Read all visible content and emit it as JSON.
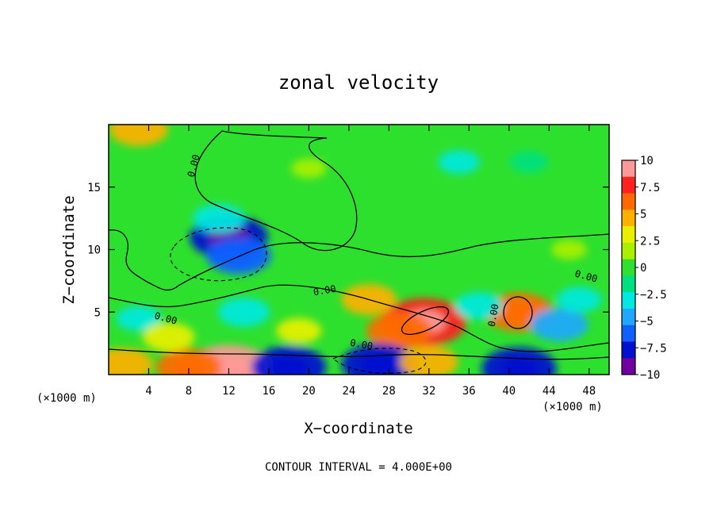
{
  "chart_data": {
    "type": "heatmap",
    "title": "zonal velocity",
    "xlabel": "X−coordinate",
    "ylabel": "Z−coordinate",
    "x_unit_left": "(×1000 m)",
    "x_unit_right": "(×1000 m)",
    "footer": "CONTOUR INTERVAL = 4.000E+00",
    "xlim": [
      0,
      50
    ],
    "ylim": [
      0,
      20
    ],
    "x_ticks": [
      4,
      8,
      12,
      16,
      20,
      24,
      28,
      32,
      36,
      40,
      44,
      48
    ],
    "x_tick_labels": [
      "4",
      "8",
      "12",
      "16",
      "20",
      "24",
      "28",
      "32",
      "36",
      "40",
      "44",
      "48"
    ],
    "y_ticks": [
      5,
      10,
      15
    ],
    "y_tick_labels": [
      "5",
      "10",
      "15"
    ],
    "colorbar": {
      "min": -10,
      "max": 10,
      "labels": [
        "10",
        "7.5",
        "5",
        "2.5",
        "0",
        "−2.5",
        "−5",
        "−7.5",
        "−10"
      ],
      "label_values": [
        10,
        7.5,
        5,
        2.5,
        0,
        -2.5,
        -5,
        -7.5,
        -10
      ],
      "colors": [
        "#ff9999",
        "#ff2020",
        "#ff6a00",
        "#ffb000",
        "#e8f000",
        "#a8f000",
        "#30e030",
        "#00e080",
        "#00e8e0",
        "#20a8ff",
        "#1060ff",
        "#0010d0",
        "#7000a0"
      ]
    },
    "contour_labels": [
      "0.00",
      "0.00",
      "0.00",
      "0.00",
      "0.00",
      "0.00"
    ],
    "features": [
      {
        "x": 12.0,
        "z": 11.0,
        "value": -8.0
      },
      {
        "x": 13.0,
        "z": 9.5,
        "value": -6.0
      },
      {
        "x": 11.0,
        "z": 12.5,
        "value": -4.0
      },
      {
        "x": 31.5,
        "z": 4.2,
        "value": 9.0
      },
      {
        "x": 29.0,
        "z": 3.5,
        "value": 6.0
      },
      {
        "x": 26.0,
        "z": 6.0,
        "value": 4.5
      },
      {
        "x": 41.0,
        "z": 5.0,
        "value": 6.5
      },
      {
        "x": 12.0,
        "z": 0.3,
        "value": 10.0
      },
      {
        "x": 8.0,
        "z": 0.6,
        "value": 6.0
      },
      {
        "x": 1.5,
        "z": 0.8,
        "value": 5.0
      },
      {
        "x": 27.0,
        "z": 0.8,
        "value": -7.5
      },
      {
        "x": 18.0,
        "z": 0.6,
        "value": -7.5
      },
      {
        "x": 41.0,
        "z": 0.5,
        "value": -7.5
      },
      {
        "x": 45.0,
        "z": 4.0,
        "value": -5.0
      },
      {
        "x": 13.5,
        "z": 5.0,
        "value": -4.0
      },
      {
        "x": 47.0,
        "z": 6.0,
        "value": -3.0
      },
      {
        "x": 3.0,
        "z": 19.6,
        "value": 5.0
      },
      {
        "x": 35.0,
        "z": 17.0,
        "value": -2.5
      },
      {
        "x": 42.0,
        "z": 17.0,
        "value": -2.0
      },
      {
        "x": 20.0,
        "z": 16.5,
        "value": 1.5
      },
      {
        "x": 32.0,
        "z": 1.0,
        "value": 5.0
      },
      {
        "x": 3.0,
        "z": 4.5,
        "value": -3.0
      },
      {
        "x": 37.0,
        "z": 5.5,
        "value": -3.5
      },
      {
        "x": 6.0,
        "z": 3.0,
        "value": 4.0
      },
      {
        "x": 19.0,
        "z": 3.5,
        "value": 3.0
      },
      {
        "x": 46.0,
        "z": 10.0,
        "value": 1.5
      }
    ]
  }
}
